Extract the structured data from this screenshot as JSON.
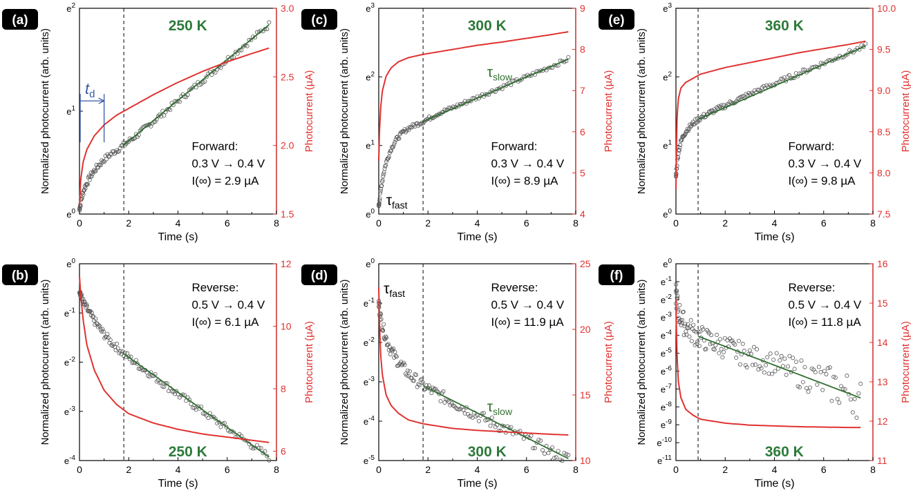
{
  "chart_data": [
    {
      "id": "a",
      "type": "scatter+line",
      "panel_label": "(a)",
      "title": "250 K",
      "xlabel": "Time (s)",
      "ylabel_left": "Normalized photocurrent (arb. units)",
      "ylabel_right": "Photocurrent (µA)",
      "xlim": [
        0,
        8
      ],
      "xticks": [
        "0",
        "2",
        "4",
        "6",
        "8"
      ],
      "left_scale": "log",
      "ylim_left": [
        0,
        2
      ],
      "left_ticks": [
        {
          "base": "e",
          "exp": "0"
        },
        {
          "base": "e",
          "exp": "1"
        },
        {
          "base": "e",
          "exp": "2"
        }
      ],
      "ylim_right": [
        1.5,
        3.0
      ],
      "right_ticks": [
        "1.5",
        "2.0",
        "2.5",
        "3.0"
      ],
      "vline_x": 1.8,
      "annotation_lines": [
        "Forward:",
        "0.3 V → 0.4 V",
        "I(∞) = 2.9 µA"
      ],
      "extra_label": {
        "text": "t",
        "sub": "d"
      },
      "series": [
        {
          "kind": "scatter",
          "axis": "left",
          "noise": 0.015,
          "x": [
            0,
            0.1,
            0.2,
            0.4,
            0.6,
            0.8,
            1.0,
            1.2,
            1.5,
            1.8,
            2.5,
            3,
            4,
            5,
            6,
            7,
            7.7
          ],
          "y": [
            0.05,
            0.17,
            0.25,
            0.35,
            0.42,
            0.48,
            0.53,
            0.57,
            0.62,
            0.67,
            0.8,
            0.9,
            1.1,
            1.3,
            1.5,
            1.7,
            1.84
          ]
        },
        {
          "kind": "line",
          "axis": "left",
          "color": "#2f6f2f",
          "x": [
            1.8,
            7.7
          ],
          "y": [
            0.67,
            1.84
          ]
        },
        {
          "kind": "line",
          "axis": "right",
          "color": "#e0312f",
          "x": [
            0,
            0.05,
            0.15,
            0.3,
            0.6,
            1.0,
            1.5,
            2,
            3,
            4,
            5,
            6,
            7,
            7.7
          ],
          "y": [
            1.56,
            1.75,
            1.88,
            1.97,
            2.07,
            2.15,
            2.22,
            2.27,
            2.37,
            2.46,
            2.54,
            2.61,
            2.67,
            2.71
          ]
        }
      ]
    },
    {
      "id": "b",
      "type": "scatter+line",
      "panel_label": "(b)",
      "title": "250 K",
      "xlabel": "Time (s)",
      "ylabel_left": "Normalized photocurrent (arb. units)",
      "ylabel_right": "Photocurrent (µA)",
      "xlim": [
        0,
        8
      ],
      "xticks": [
        "0",
        "2",
        "4",
        "6",
        "8"
      ],
      "left_scale": "log",
      "ylim_left": [
        -4,
        0
      ],
      "left_ticks": [
        {
          "base": "e",
          "exp": "-4"
        },
        {
          "base": "e",
          "exp": "-3"
        },
        {
          "base": "e",
          "exp": "-2"
        },
        {
          "base": "e",
          "exp": "-1"
        },
        {
          "base": "e",
          "exp": "0"
        }
      ],
      "ylim_right": [
        5.7,
        12
      ],
      "right_ticks": [
        "6",
        "8",
        "10",
        "12"
      ],
      "vline_x": 1.8,
      "annotation_lines": [
        "Reverse:",
        "0.5 V → 0.4 V",
        "I(∞) = 6.1 µA"
      ],
      "series": [
        {
          "kind": "scatter",
          "axis": "left",
          "noise": 0.02,
          "x": [
            0,
            0.1,
            0.2,
            0.4,
            0.6,
            0.8,
            1.0,
            1.3,
            1.8,
            2.5,
            3,
            4,
            5,
            6,
            7,
            7.7
          ],
          "y": [
            -0.52,
            -0.72,
            -0.83,
            -1.0,
            -1.15,
            -1.3,
            -1.43,
            -1.6,
            -1.83,
            -2.1,
            -2.28,
            -2.65,
            -3.0,
            -3.35,
            -3.68,
            -3.93
          ]
        },
        {
          "kind": "line",
          "axis": "left",
          "color": "#2f6f2f",
          "x": [
            1.8,
            7.7
          ],
          "y": [
            -1.83,
            -3.93
          ]
        },
        {
          "kind": "line",
          "axis": "right",
          "color": "#e0312f",
          "x": [
            0,
            0.05,
            0.15,
            0.3,
            0.6,
            1.0,
            1.5,
            2,
            3,
            4,
            5,
            6,
            7,
            7.7
          ],
          "y": [
            11.6,
            11.0,
            10.2,
            9.4,
            8.6,
            7.95,
            7.5,
            7.2,
            6.9,
            6.7,
            6.55,
            6.45,
            6.35,
            6.28
          ]
        }
      ]
    },
    {
      "id": "c",
      "type": "scatter+line",
      "panel_label": "(c)",
      "title": "300 K",
      "xlabel": "Time (s)",
      "ylabel_left": "Normalized photocurrent (arb. units)",
      "ylabel_right": "Photocurrent (µA)",
      "xlim": [
        0,
        8
      ],
      "xticks": [
        "0",
        "2",
        "4",
        "6",
        "8"
      ],
      "left_scale": "log",
      "ylim_left": [
        0,
        3
      ],
      "left_ticks": [
        {
          "base": "e",
          "exp": "0"
        },
        {
          "base": "e",
          "exp": "1"
        },
        {
          "base": "e",
          "exp": "2"
        },
        {
          "base": "e",
          "exp": "3"
        }
      ],
      "ylim_right": [
        4,
        9
      ],
      "right_ticks": [
        "4",
        "5",
        "6",
        "7",
        "8",
        "9"
      ],
      "vline_x": 1.8,
      "annotation_lines": [
        "Forward:",
        "0.3 V → 0.4 V",
        "I(∞) = 8.9 µA"
      ],
      "tau_labels": [
        {
          "base": "τ",
          "sub": "slow"
        },
        {
          "base": "τ",
          "sub": "fast"
        }
      ],
      "series": [
        {
          "kind": "scatter",
          "axis": "left",
          "noise": 0.01,
          "x": [
            0,
            0.05,
            0.1,
            0.2,
            0.3,
            0.5,
            0.7,
            1.0,
            1.3,
            1.8,
            2.5,
            3,
            4,
            5,
            6,
            7,
            7.7
          ],
          "y": [
            0.12,
            0.25,
            0.4,
            0.6,
            0.75,
            0.95,
            1.08,
            1.2,
            1.27,
            1.35,
            1.48,
            1.55,
            1.7,
            1.85,
            2.0,
            2.15,
            2.26
          ]
        },
        {
          "kind": "line",
          "axis": "left",
          "color": "#2f6f2f",
          "x": [
            1.8,
            7.7
          ],
          "y": [
            1.35,
            2.26
          ]
        },
        {
          "kind": "line",
          "axis": "right",
          "color": "#e0312f",
          "x": [
            0,
            0.03,
            0.08,
            0.15,
            0.3,
            0.5,
            0.8,
            1.2,
            1.8,
            3,
            4,
            5,
            6,
            7,
            7.7
          ],
          "y": [
            5.3,
            6.0,
            6.6,
            7.0,
            7.35,
            7.55,
            7.7,
            7.8,
            7.88,
            8.0,
            8.1,
            8.18,
            8.27,
            8.36,
            8.43
          ]
        }
      ]
    },
    {
      "id": "d",
      "type": "scatter+line",
      "panel_label": "(d)",
      "title": "300 K",
      "xlabel": "Time (s)",
      "ylabel_left": "Normalized photocurrent (arb. units)",
      "ylabel_right": "Photocurrent (µA)",
      "xlim": [
        0,
        8
      ],
      "xticks": [
        "0",
        "2",
        "4",
        "6",
        "8"
      ],
      "left_scale": "log",
      "ylim_left": [
        -5,
        0
      ],
      "left_ticks": [
        {
          "base": "e",
          "exp": "-5"
        },
        {
          "base": "e",
          "exp": "-4"
        },
        {
          "base": "e",
          "exp": "-3"
        },
        {
          "base": "e",
          "exp": "-2"
        },
        {
          "base": "e",
          "exp": "-1"
        },
        {
          "base": "e",
          "exp": "0"
        }
      ],
      "ylim_right": [
        10,
        25
      ],
      "right_ticks": [
        "10",
        "15",
        "20",
        "25"
      ],
      "vline_x": 1.8,
      "annotation_lines": [
        "Reverse:",
        "0.5 V → 0.4 V",
        "I(∞) = 11.9 µA"
      ],
      "tau_labels": [
        {
          "base": "τ",
          "sub": "fast"
        },
        {
          "base": "τ",
          "sub": "slow"
        }
      ],
      "series": [
        {
          "kind": "scatter",
          "axis": "left",
          "noise": 0.03,
          "x": [
            0,
            0.05,
            0.1,
            0.2,
            0.3,
            0.5,
            0.7,
            1.0,
            1.3,
            1.8,
            2.5,
            3,
            4,
            5,
            6,
            7,
            7.7
          ],
          "y": [
            -1.0,
            -1.25,
            -1.45,
            -1.7,
            -1.9,
            -2.2,
            -2.4,
            -2.65,
            -2.85,
            -3.1,
            -3.35,
            -3.52,
            -3.85,
            -4.15,
            -4.45,
            -4.78,
            -4.95
          ]
        },
        {
          "kind": "line",
          "axis": "left",
          "color": "#2f6f2f",
          "x": [
            1.8,
            7.7
          ],
          "y": [
            -3.1,
            -4.95
          ]
        },
        {
          "kind": "line",
          "axis": "right",
          "color": "#e0312f",
          "x": [
            0,
            0.03,
            0.08,
            0.15,
            0.3,
            0.5,
            0.8,
            1.2,
            1.8,
            3,
            4,
            5,
            6,
            7,
            7.7
          ],
          "y": [
            23.2,
            20.5,
            18.0,
            16.5,
            15.0,
            14.2,
            13.6,
            13.1,
            12.8,
            12.45,
            12.3,
            12.2,
            12.1,
            12.0,
            11.95
          ]
        }
      ]
    },
    {
      "id": "e",
      "type": "scatter+line",
      "panel_label": "(e)",
      "title": "360 K",
      "xlabel": "Time (s)",
      "ylabel_left": "Normalized photocurrent (arb. units)",
      "ylabel_right": "Photocurrent (µA)",
      "xlim": [
        0,
        8
      ],
      "xticks": [
        "0",
        "2",
        "4",
        "6",
        "8"
      ],
      "left_scale": "log",
      "ylim_left": [
        0,
        3
      ],
      "left_ticks": [
        {
          "base": "e",
          "exp": "0"
        },
        {
          "base": "e",
          "exp": "1"
        },
        {
          "base": "e",
          "exp": "2"
        },
        {
          "base": "e",
          "exp": "3"
        }
      ],
      "ylim_right": [
        7.5,
        10.0
      ],
      "right_ticks": [
        "7.5",
        "8.0",
        "8.5",
        "9.0",
        "9.5",
        "10.0"
      ],
      "vline_x": 0.9,
      "annotation_lines": [
        "Forward:",
        "0.3 V → 0.4 V",
        "I(∞) = 9.8 µA"
      ],
      "series": [
        {
          "kind": "scatter",
          "axis": "left",
          "noise": 0.012,
          "x": [
            0,
            0.05,
            0.1,
            0.2,
            0.3,
            0.5,
            0.7,
            0.9,
            1.5,
            2,
            3,
            4,
            5,
            6,
            7,
            7.7
          ],
          "y": [
            0.55,
            0.75,
            0.9,
            1.05,
            1.15,
            1.25,
            1.32,
            1.38,
            1.5,
            1.58,
            1.75,
            1.9,
            2.05,
            2.2,
            2.35,
            2.45
          ]
        },
        {
          "kind": "line",
          "axis": "left",
          "color": "#2f6f2f",
          "x": [
            0.9,
            7.7
          ],
          "y": [
            1.38,
            2.45
          ]
        },
        {
          "kind": "line",
          "axis": "right",
          "color": "#e0312f",
          "x": [
            0,
            0.02,
            0.05,
            0.1,
            0.2,
            0.4,
            0.7,
            1.0,
            2,
            3,
            4,
            5,
            6,
            7,
            7.7
          ],
          "y": [
            7.8,
            8.3,
            8.7,
            8.9,
            9.03,
            9.1,
            9.15,
            9.2,
            9.28,
            9.34,
            9.4,
            9.46,
            9.51,
            9.56,
            9.6
          ]
        }
      ]
    },
    {
      "id": "f",
      "type": "scatter+line",
      "panel_label": "(f)",
      "title": "360 K",
      "xlabel": "Time (s)",
      "ylabel_left": "Normalized photocurrent (arb. units)",
      "ylabel_right": "Photocurrent (µA)",
      "xlim": [
        0,
        8
      ],
      "xticks": [
        "0",
        "2",
        "4",
        "6",
        "8"
      ],
      "left_scale": "log",
      "ylim_left": [
        -11,
        0
      ],
      "left_ticks": [
        {
          "base": "e",
          "exp": "-11"
        },
        {
          "base": "e",
          "exp": "-10"
        },
        {
          "base": "e",
          "exp": "-9"
        },
        {
          "base": "e",
          "exp": "-8"
        },
        {
          "base": "e",
          "exp": "-7"
        },
        {
          "base": "e",
          "exp": "-6"
        },
        {
          "base": "e",
          "exp": "-5"
        },
        {
          "base": "e",
          "exp": "-4"
        },
        {
          "base": "e",
          "exp": "-3"
        },
        {
          "base": "e",
          "exp": "-2"
        },
        {
          "base": "e",
          "exp": "-1"
        },
        {
          "base": "e",
          "exp": "0"
        }
      ],
      "ylim_right": [
        11,
        16
      ],
      "right_ticks": [
        "11",
        "12",
        "13",
        "14",
        "15",
        "16"
      ],
      "vline_x": 0.9,
      "annotation_lines": [
        "Reverse:",
        "0.5 V → 0.4 V",
        "I(∞) = 11.8 µA"
      ],
      "series": [
        {
          "kind": "scatter",
          "axis": "left",
          "noise": 0.06,
          "noise_grow": 0.6,
          "x": [
            0,
            0.05,
            0.1,
            0.2,
            0.3,
            0.5,
            0.7,
            0.9,
            1.5,
            2,
            3,
            4,
            5,
            6,
            7,
            7.5
          ],
          "y": [
            -1.7,
            -2.2,
            -2.6,
            -3.0,
            -3.3,
            -3.6,
            -3.85,
            -4.05,
            -4.4,
            -4.65,
            -5.2,
            -5.6,
            -6.1,
            -6.6,
            -7.2,
            -7.5
          ]
        },
        {
          "kind": "line",
          "axis": "left",
          "color": "#2f6f2f",
          "x": [
            0.9,
            7.5
          ],
          "y": [
            -4.05,
            -7.5
          ]
        },
        {
          "kind": "line",
          "axis": "right",
          "color": "#e0312f",
          "x": [
            0,
            0.02,
            0.05,
            0.1,
            0.2,
            0.4,
            0.7,
            1.0,
            2,
            3,
            4,
            5,
            6,
            7,
            7.5
          ],
          "y": [
            15.1,
            14.3,
            13.6,
            13.0,
            12.6,
            12.3,
            12.15,
            12.05,
            11.95,
            11.9,
            11.88,
            11.86,
            11.85,
            11.84,
            11.84
          ]
        }
      ]
    }
  ],
  "colors": {
    "red": "#e0312f",
    "green": "#2f6f2f",
    "title_green": "#2d7a3a",
    "td_blue": "#3658a8"
  }
}
